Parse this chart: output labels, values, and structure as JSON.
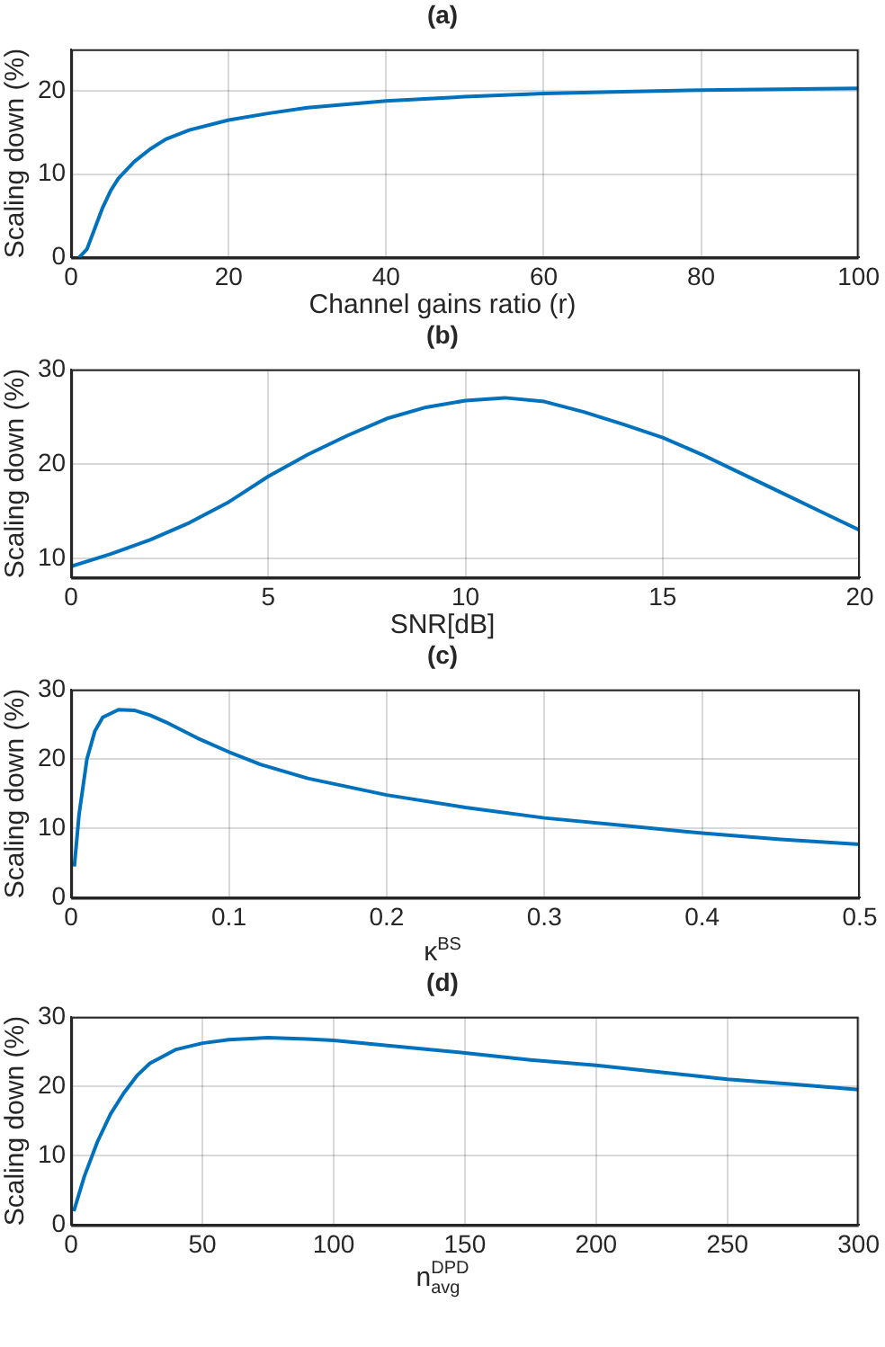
{
  "chart_data": [
    {
      "type": "line",
      "title": "(a)",
      "xlabel": "Channel gains ratio (r)",
      "ylabel": "Scaling down (%)",
      "xlim": [
        0,
        100
      ],
      "xticks": [
        0,
        20,
        40,
        60,
        80,
        100
      ],
      "ylim": [
        0,
        25
      ],
      "yticks": [
        0,
        10,
        20
      ],
      "grid": true,
      "legend": false,
      "marker": "none",
      "line_style": "solid",
      "series": [
        {
          "color": "#0072bd",
          "x": [
            1,
            2,
            3,
            4,
            5,
            6,
            8,
            10,
            12,
            15,
            20,
            25,
            30,
            40,
            50,
            60,
            70,
            80,
            90,
            100
          ],
          "values": [
            0,
            1,
            3.5,
            6,
            8,
            9.5,
            11.5,
            13,
            14.2,
            15.3,
            16.5,
            17.3,
            18,
            18.8,
            19.3,
            19.7,
            19.9,
            20.1,
            20.2,
            20.3
          ]
        }
      ]
    },
    {
      "type": "line",
      "title": "(b)",
      "xlabel": "SNR[dB]",
      "ylabel": "Scaling down (%)",
      "xlim": [
        0,
        20
      ],
      "xticks": [
        0,
        5,
        10,
        15,
        20
      ],
      "ylim": [
        8,
        30
      ],
      "yticks": [
        10,
        20,
        30
      ],
      "grid": true,
      "legend": false,
      "marker": "none",
      "line_style": "solid",
      "series": [
        {
          "color": "#0072bd",
          "x": [
            0,
            1,
            2,
            3,
            4,
            5,
            6,
            7,
            8,
            9,
            10,
            11,
            12,
            13,
            14,
            15,
            16,
            17,
            18,
            19,
            20
          ],
          "values": [
            9.2,
            10.5,
            12,
            13.8,
            16,
            18.7,
            21,
            23,
            24.8,
            26,
            26.7,
            27,
            26.6,
            25.5,
            24.2,
            22.8,
            21,
            19,
            17,
            15,
            13
          ]
        }
      ]
    },
    {
      "type": "line",
      "title": "(c)",
      "xlabel": "κ$^{BS}$",
      "ylabel": "Scaling down (%)",
      "xlim": [
        0,
        0.5
      ],
      "xticks": [
        0,
        0.1,
        0.2,
        0.3,
        0.4,
        0.5
      ],
      "ylim": [
        0,
        30
      ],
      "yticks": [
        0,
        10,
        20,
        30
      ],
      "grid": true,
      "legend": false,
      "marker": "none",
      "line_style": "solid",
      "series": [
        {
          "color": "#0072bd",
          "x": [
            0.002,
            0.005,
            0.01,
            0.015,
            0.02,
            0.03,
            0.04,
            0.05,
            0.06,
            0.08,
            0.1,
            0.12,
            0.15,
            0.2,
            0.25,
            0.3,
            0.35,
            0.4,
            0.45,
            0.5
          ],
          "values": [
            4.5,
            12,
            20,
            24,
            26,
            27.1,
            27,
            26.3,
            25.3,
            23,
            21,
            19.2,
            17.2,
            14.8,
            13,
            11.5,
            10.4,
            9.3,
            8.4,
            7.7
          ]
        }
      ]
    },
    {
      "type": "line",
      "title": "(d)",
      "xlabel": "n$^{DPD}$$_{avg}$",
      "ylabel": "Scaling down (%)",
      "xlim": [
        0,
        300
      ],
      "xticks": [
        0,
        50,
        100,
        150,
        200,
        250,
        300
      ],
      "ylim": [
        0,
        30
      ],
      "yticks": [
        0,
        10,
        20,
        30
      ],
      "grid": true,
      "legend": false,
      "marker": "none",
      "line_style": "solid",
      "series": [
        {
          "color": "#0072bd",
          "x": [
            1,
            5,
            10,
            15,
            20,
            25,
            30,
            40,
            50,
            60,
            75,
            90,
            100,
            125,
            150,
            175,
            200,
            225,
            250,
            275,
            300
          ],
          "values": [
            2,
            7,
            12,
            16,
            19,
            21.5,
            23.3,
            25.3,
            26.2,
            26.7,
            27,
            26.8,
            26.6,
            25.7,
            24.8,
            23.8,
            23,
            22,
            21,
            20.3,
            19.5
          ]
        }
      ]
    }
  ]
}
